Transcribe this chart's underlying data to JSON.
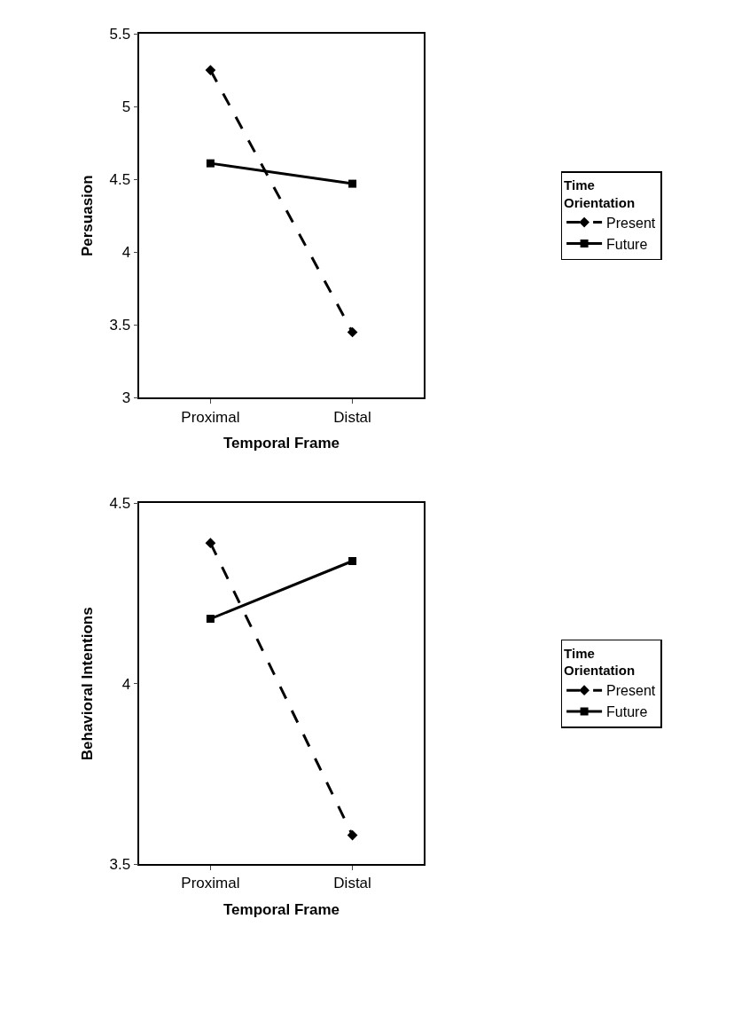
{
  "chart_data": [
    {
      "type": "line",
      "xlabel": "Temporal Frame",
      "ylabel": "Persuasion",
      "legend_title": "Time\nOrientation",
      "categories": [
        "Proximal",
        "Distal"
      ],
      "ylim": [
        3,
        5.5
      ],
      "yticks": [
        3,
        3.5,
        4,
        4.5,
        5,
        5.5
      ],
      "legend": "right",
      "series": [
        {
          "name": "Present",
          "color": "#000000",
          "values": [
            5.25,
            3.45
          ],
          "marker": "diamond",
          "line_style": "dashed"
        },
        {
          "name": "Future",
          "color": "#000000",
          "values": [
            4.61,
            4.47
          ],
          "marker": "square",
          "line_style": "solid"
        }
      ]
    },
    {
      "type": "line",
      "xlabel": "Temporal Frame",
      "ylabel": "Behavioral Intentions",
      "legend_title": "Time\nOrientation",
      "categories": [
        "Proximal",
        "Distal"
      ],
      "ylim": [
        3.5,
        4.5
      ],
      "yticks": [
        3.5,
        4,
        4.5
      ],
      "legend": "right",
      "series": [
        {
          "name": "Present",
          "color": "#000000",
          "values": [
            4.39,
            3.58
          ],
          "marker": "diamond",
          "line_style": "dashed"
        },
        {
          "name": "Future",
          "color": "#000000",
          "values": [
            4.18,
            4.34
          ],
          "marker": "square",
          "line_style": "solid"
        }
      ]
    }
  ]
}
